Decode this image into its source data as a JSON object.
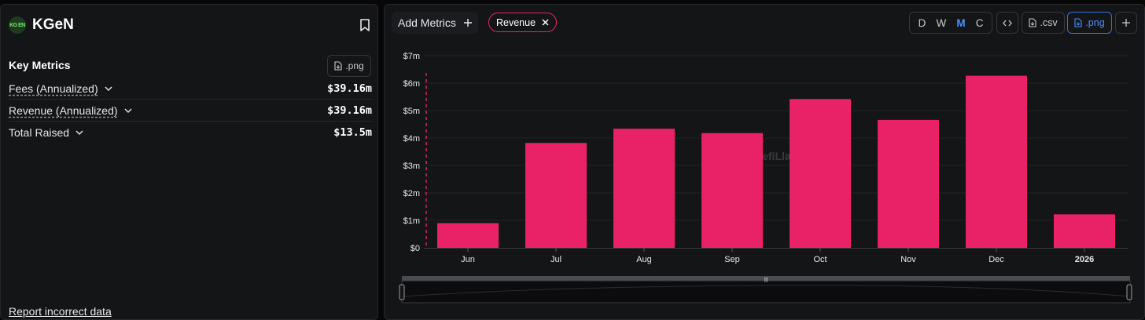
{
  "brand": {
    "name": "KGeN",
    "logo_text": "KG EN",
    "logo_color": "#6be86b"
  },
  "left": {
    "key_metrics_title": "Key Metrics",
    "png_label": ".png",
    "metrics": [
      {
        "label": "Fees (Annualized)",
        "value": "$39.16m"
      },
      {
        "label": "Revenue (Annualized)",
        "value": "$39.16m"
      },
      {
        "label": "Total Raised",
        "value": "$13.5m"
      }
    ],
    "report_link": "Report incorrect data"
  },
  "toolbar": {
    "add_metrics": "Add Metrics",
    "chip": "Revenue",
    "granularity": [
      "D",
      "W",
      "M",
      "C"
    ],
    "granularity_selected": "M",
    "embed_icon": "code-icon",
    "csv_label": ".csv",
    "png_label": ".png"
  },
  "chart_data": {
    "type": "bar",
    "categories": [
      "Jun",
      "Jul",
      "Aug",
      "Sep",
      "Oct",
      "Nov",
      "Dec",
      "2026"
    ],
    "series": [
      {
        "values": [
          0.9,
          3.82,
          4.34,
          4.18,
          5.42,
          4.66,
          6.27,
          1.22
        ],
        "color": "#e92268"
      }
    ],
    "y_ticks": [
      "$0",
      "$1m",
      "$2m",
      "$3m",
      "$4m",
      "$5m",
      "$6m",
      "$7m"
    ],
    "ylim": [
      0,
      7
    ],
    "watermark": "DefiLlama",
    "grid": true
  }
}
